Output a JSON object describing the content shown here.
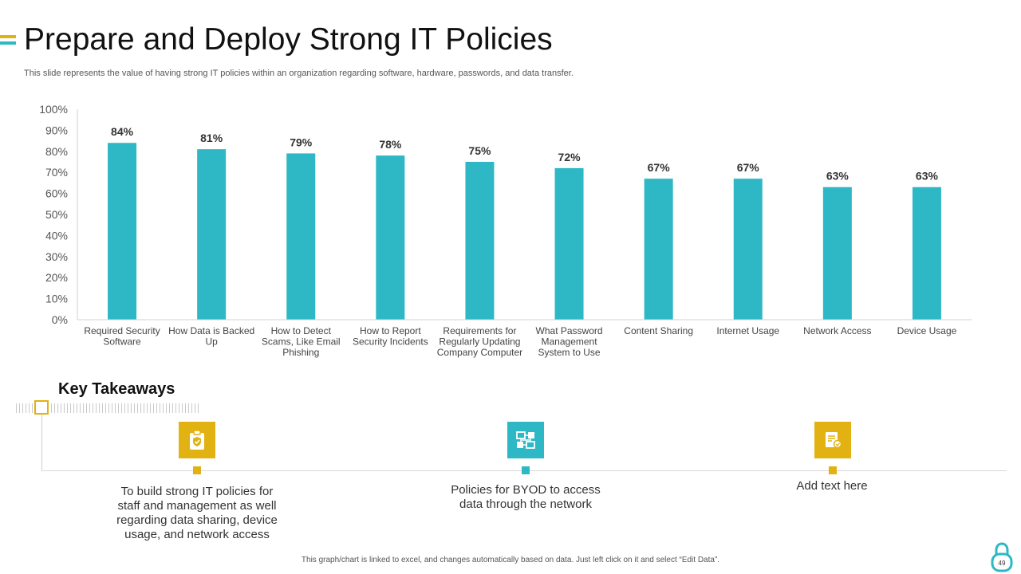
{
  "slide": {
    "title": "Prepare and Deploy Strong IT Policies",
    "subtitle": "This slide represents the value of having strong IT policies within an organization regarding software, hardware, passwords, and data transfer.",
    "footer": "This graph/chart is linked to excel, and changes automatically based on data. Just left click on it and select “Edit Data”.",
    "page_number": "49"
  },
  "colors": {
    "bar": "#2eb8c5",
    "yellow": "#e2b112",
    "teal": "#2eb8c5"
  },
  "chart_data": {
    "type": "bar",
    "title": "",
    "xlabel": "",
    "ylabel": "",
    "categories": [
      "Required Security Software",
      "How Data is Backed Up",
      "How to Detect Scams, Like Email Phishing",
      "How to Report Security Incidents",
      "Requirements for Regularly Updating Company Computer",
      "What Password Management System to Use",
      "Content Sharing",
      "Internet Usage",
      "Network Access",
      "Device Usage"
    ],
    "category_lines": [
      [
        "Required Security",
        "Software"
      ],
      [
        "How Data is Backed",
        "Up"
      ],
      [
        "How to Detect",
        "Scams, Like Email",
        "Phishing"
      ],
      [
        "How to Report",
        "Security Incidents"
      ],
      [
        "Requirements for",
        "Regularly Updating",
        "Company Computer"
      ],
      [
        "What Password",
        "Management",
        "System to Use"
      ],
      [
        "Content Sharing"
      ],
      [
        "Internet Usage"
      ],
      [
        "Network Access"
      ],
      [
        "Device Usage"
      ]
    ],
    "values": [
      84,
      81,
      79,
      78,
      75,
      72,
      67,
      67,
      63,
      63
    ],
    "data_labels": [
      "84%",
      "81%",
      "79%",
      "78%",
      "75%",
      "72%",
      "67%",
      "67%",
      "63%",
      "63%"
    ],
    "ylim": [
      0,
      100
    ],
    "yticks": [
      0,
      10,
      20,
      30,
      40,
      50,
      60,
      70,
      80,
      90,
      100
    ],
    "ytick_labels": [
      "0%",
      "10%",
      "20%",
      "30%",
      "40%",
      "50%",
      "60%",
      "70%",
      "80%",
      "90%",
      "100%"
    ],
    "grid": false,
    "legend": "none"
  },
  "takeaways": {
    "title": "Key Takeaways",
    "items": [
      {
        "icon": "clipboard-shield-icon",
        "text": "To build strong IT policies for staff and management as well regarding data sharing, device usage, and network access"
      },
      {
        "icon": "network-devices-icon",
        "text": "Policies for BYOD to access data through the network"
      },
      {
        "icon": "document-icon",
        "text": "Add text here"
      }
    ]
  }
}
